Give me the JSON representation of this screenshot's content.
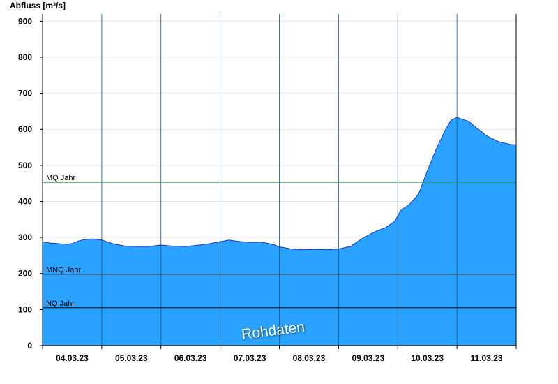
{
  "chart_data": {
    "type": "area",
    "ylabel": "Abfluss [m³/s]",
    "ylim": [
      0,
      920
    ],
    "yticks": [
      0,
      100,
      200,
      300,
      400,
      500,
      600,
      700,
      800,
      900
    ],
    "x_tick_labels": [
      "04.03.23",
      "05.03.23",
      "06.03.23",
      "07.03.23",
      "08.03.23",
      "09.03.23",
      "10.03.23",
      "11.03.23"
    ],
    "x_range_days": [
      0,
      8
    ],
    "grid": true,
    "series": [
      {
        "color": "#29a3ff",
        "x_days": [
          0,
          0.1,
          0.25,
          0.4,
          0.5,
          0.6,
          0.7,
          0.85,
          1.0,
          1.2,
          1.4,
          1.6,
          1.8,
          2.0,
          2.2,
          2.4,
          2.6,
          2.8,
          3.0,
          3.15,
          3.3,
          3.5,
          3.7,
          3.9,
          4.0,
          4.2,
          4.4,
          4.6,
          4.8,
          5.0,
          5.2,
          5.4,
          5.6,
          5.8,
          5.95,
          6.05,
          6.2,
          6.35,
          6.5,
          6.65,
          6.8,
          6.9,
          7.0,
          7.05,
          7.1,
          7.2,
          7.3,
          7.4,
          7.5,
          7.6,
          7.7,
          7.8,
          7.9,
          8.0
        ],
        "values": [
          288,
          285,
          283,
          281,
          283,
          290,
          294,
          296,
          293,
          282,
          276,
          275,
          275,
          279,
          276,
          275,
          278,
          282,
          288,
          293,
          289,
          286,
          287,
          280,
          274,
          268,
          266,
          267,
          266,
          268,
          275,
          297,
          315,
          328,
          345,
          375,
          392,
          420,
          485,
          545,
          597,
          625,
          633,
          630,
          628,
          622,
          608,
          595,
          582,
          574,
          566,
          562,
          558,
          557
        ]
      }
    ],
    "reference_lines": [
      {
        "label": "MQ Jahr",
        "value": 453,
        "color": "#2e8b2e"
      },
      {
        "label": "MNQ Jahr",
        "value": 198,
        "color": "#000000"
      },
      {
        "label": "NQ Jahr",
        "value": 105,
        "color": "#000000"
      }
    ],
    "watermark": "Rohdaten"
  }
}
